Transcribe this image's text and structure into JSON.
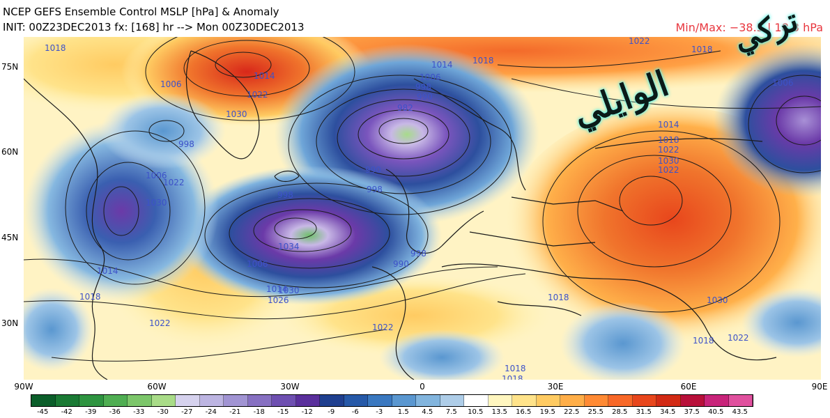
{
  "header": {
    "title": "NCEP GEFS Ensemble Control MSLP [hPa] & Anomaly",
    "init": "INIT: 00Z23DEC2013 fx: [168] hr --> Mon 00Z30DEC2013",
    "minmax": "Min/Max: −38.5 | 18.3 hPa"
  },
  "axes": {
    "lat_labels": [
      "75N",
      "60N",
      "45N",
      "30N"
    ],
    "lon_labels": [
      "90W",
      "60W",
      "30W",
      "0",
      "30E",
      "60E",
      "90E"
    ]
  },
  "colorbar": {
    "labels": [
      "-45",
      "-42",
      "-39",
      "-36",
      "-33",
      "-30",
      "-27",
      "-24",
      "-21",
      "-18",
      "-15",
      "-12",
      "-9",
      "-6",
      "-3",
      "1.5",
      "4.5",
      "7.5",
      "10.5",
      "13.5",
      "16.5",
      "19.5",
      "22.5",
      "25.5",
      "28.5",
      "31.5",
      "34.5",
      "37.5",
      "40.5",
      "43.5"
    ],
    "colors": [
      "#0b5e2a",
      "#1a7a34",
      "#2e9440",
      "#4fae52",
      "#7cc66a",
      "#a9dc88",
      "#d6d2ee",
      "#bdb5e2",
      "#a194d3",
      "#8770c2",
      "#6e4fb1",
      "#5a2f9c",
      "#1f3f8f",
      "#2659a8",
      "#3a78c0",
      "#5a97d0",
      "#82b5de",
      "#aecde8",
      "#ffffff",
      "#fff6bf",
      "#ffe38a",
      "#ffcb62",
      "#ffae48",
      "#ff8a34",
      "#f86828",
      "#e8461c",
      "#d22a14",
      "#b8103a",
      "#c8247a",
      "#e0509e"
    ]
  },
  "isobar_labels": [
    "1018",
    "1006",
    "1014",
    "1030",
    "1022",
    "998",
    "1014",
    "1006",
    "998",
    "990",
    "982",
    "1018",
    "1022",
    "1030",
    "1006",
    "1014",
    "1018",
    "1022",
    "1026",
    "1030",
    "1034",
    "998",
    "1006",
    "990",
    "998",
    "1014",
    "1030",
    "1022",
    "1018",
    "1018",
    "1022",
    "1018",
    "1006",
    "990",
    "998",
    "1014",
    "1018",
    "1022",
    "1030",
    "1022",
    "1018",
    "1022",
    "1018"
  ],
  "map": {
    "colors": {
      "high": "#f0742c",
      "high_core": "#d8281a",
      "low": "#2d5aa8",
      "low_core": "#6b3aa8",
      "low_center": "#a7dc8a",
      "neutral": "#fff6bf",
      "isobar": "#1a1a1a",
      "isobar_label": "#3d52c9",
      "coast": "#1a1a1a"
    }
  },
  "watermark": {
    "line1": "تركي",
    "line2": "الوايلي"
  }
}
